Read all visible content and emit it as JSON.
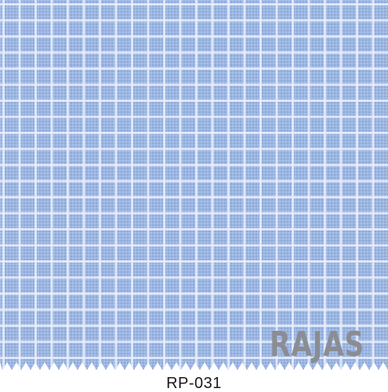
{
  "brand": "RAJAS",
  "code": "RP-031",
  "colors": {
    "fabric": "#9fb8e3",
    "fabric_dark": "#8eaad9",
    "grid_line": "#e8eefa",
    "brand_text": "#8a8d94",
    "background": "#ffffff"
  }
}
